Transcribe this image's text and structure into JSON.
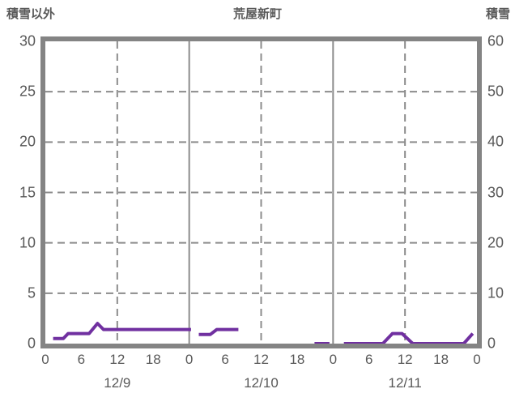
{
  "titles": {
    "left": "積雪以外",
    "center": "荒屋新町",
    "right": "積雪"
  },
  "colors": {
    "line": "#7030A0",
    "frame": "#848484",
    "grid": "#8c8c8c",
    "text": "#595959",
    "background": "#ffffff"
  },
  "chart_data": {
    "type": "line",
    "title": "荒屋新町",
    "left_axis": {
      "title": "積雪以外",
      "min": 0,
      "max": 30,
      "ticks": [
        30,
        25,
        20,
        15,
        10,
        5,
        0
      ]
    },
    "right_axis": {
      "title": "積雪",
      "min": 0,
      "max": 60,
      "ticks": [
        60,
        50,
        40,
        30,
        20,
        10,
        0
      ]
    },
    "x_axis": {
      "unit": "hours-from-12/9-00:00",
      "min": 0,
      "max": 72,
      "tick_hours": [
        0,
        6,
        12,
        18,
        24,
        30,
        36,
        42,
        48,
        54,
        60,
        66,
        72
      ],
      "tick_labels": [
        "0",
        "6",
        "12",
        "18",
        "0",
        "6",
        "12",
        "18",
        "0",
        "6",
        "12",
        "18",
        "0"
      ],
      "date_labels": [
        {
          "label": "12/9",
          "hour": 12
        },
        {
          "label": "12/10",
          "hour": 36
        },
        {
          "label": "12/11",
          "hour": 60
        }
      ]
    },
    "grid": {
      "horizontal_dashed_values_left_axis": [
        5,
        10,
        15,
        20,
        25
      ],
      "vertical_solid_hours": [
        24,
        48
      ],
      "vertical_dashed_hours": [
        12,
        36,
        60
      ],
      "legend": "off"
    },
    "series": [
      {
        "name": "purple-observation-line",
        "axis": "left",
        "color": "#7030A0",
        "segments": [
          [
            [
              1.3,
              0.5
            ],
            [
              3.0,
              0.5
            ],
            [
              3.8,
              1.0
            ],
            [
              7.3,
              1.0
            ],
            [
              8.7,
              2.0
            ],
            [
              9.7,
              1.4
            ],
            [
              24.3,
              1.4
            ]
          ],
          [
            [
              25.6,
              0.9
            ],
            [
              27.5,
              0.9
            ],
            [
              28.6,
              1.4
            ],
            [
              32.2,
              1.4
            ]
          ],
          [
            [
              44.9,
              0.0
            ],
            [
              47.4,
              0.0
            ]
          ],
          [
            [
              49.8,
              0.0
            ],
            [
              56.3,
              0.0
            ],
            [
              57.9,
              1.0
            ],
            [
              59.5,
              1.0
            ],
            [
              61.3,
              0.0
            ],
            [
              69.8,
              0.0
            ],
            [
              71.3,
              1.0
            ]
          ]
        ]
      }
    ]
  }
}
